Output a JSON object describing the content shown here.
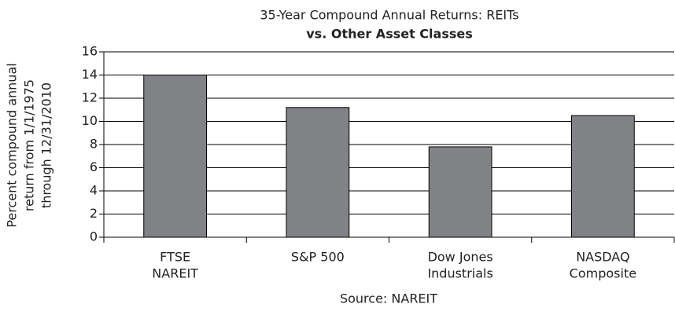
{
  "chart_data": {
    "type": "bar",
    "title": "35-Year Compound Annual Returns: REITs",
    "subtitle": "vs. Other Asset Classes",
    "ylabel": [
      "Percent compound annual",
      "return from 1/1/1975",
      "through 12/31/2010"
    ],
    "categories": [
      [
        "FTSE",
        "NAREIT"
      ],
      [
        "S&P 500"
      ],
      [
        "Dow Jones",
        "Industrials"
      ],
      [
        "NASDAQ",
        "Composite"
      ]
    ],
    "values": [
      14.0,
      11.2,
      7.8,
      10.5
    ],
    "color": "#808285",
    "ylim": [
      0,
      16
    ],
    "yticks": [
      0,
      2,
      4,
      6,
      8,
      10,
      12,
      14,
      16
    ],
    "grid": true,
    "source": "Source: NAREIT"
  }
}
